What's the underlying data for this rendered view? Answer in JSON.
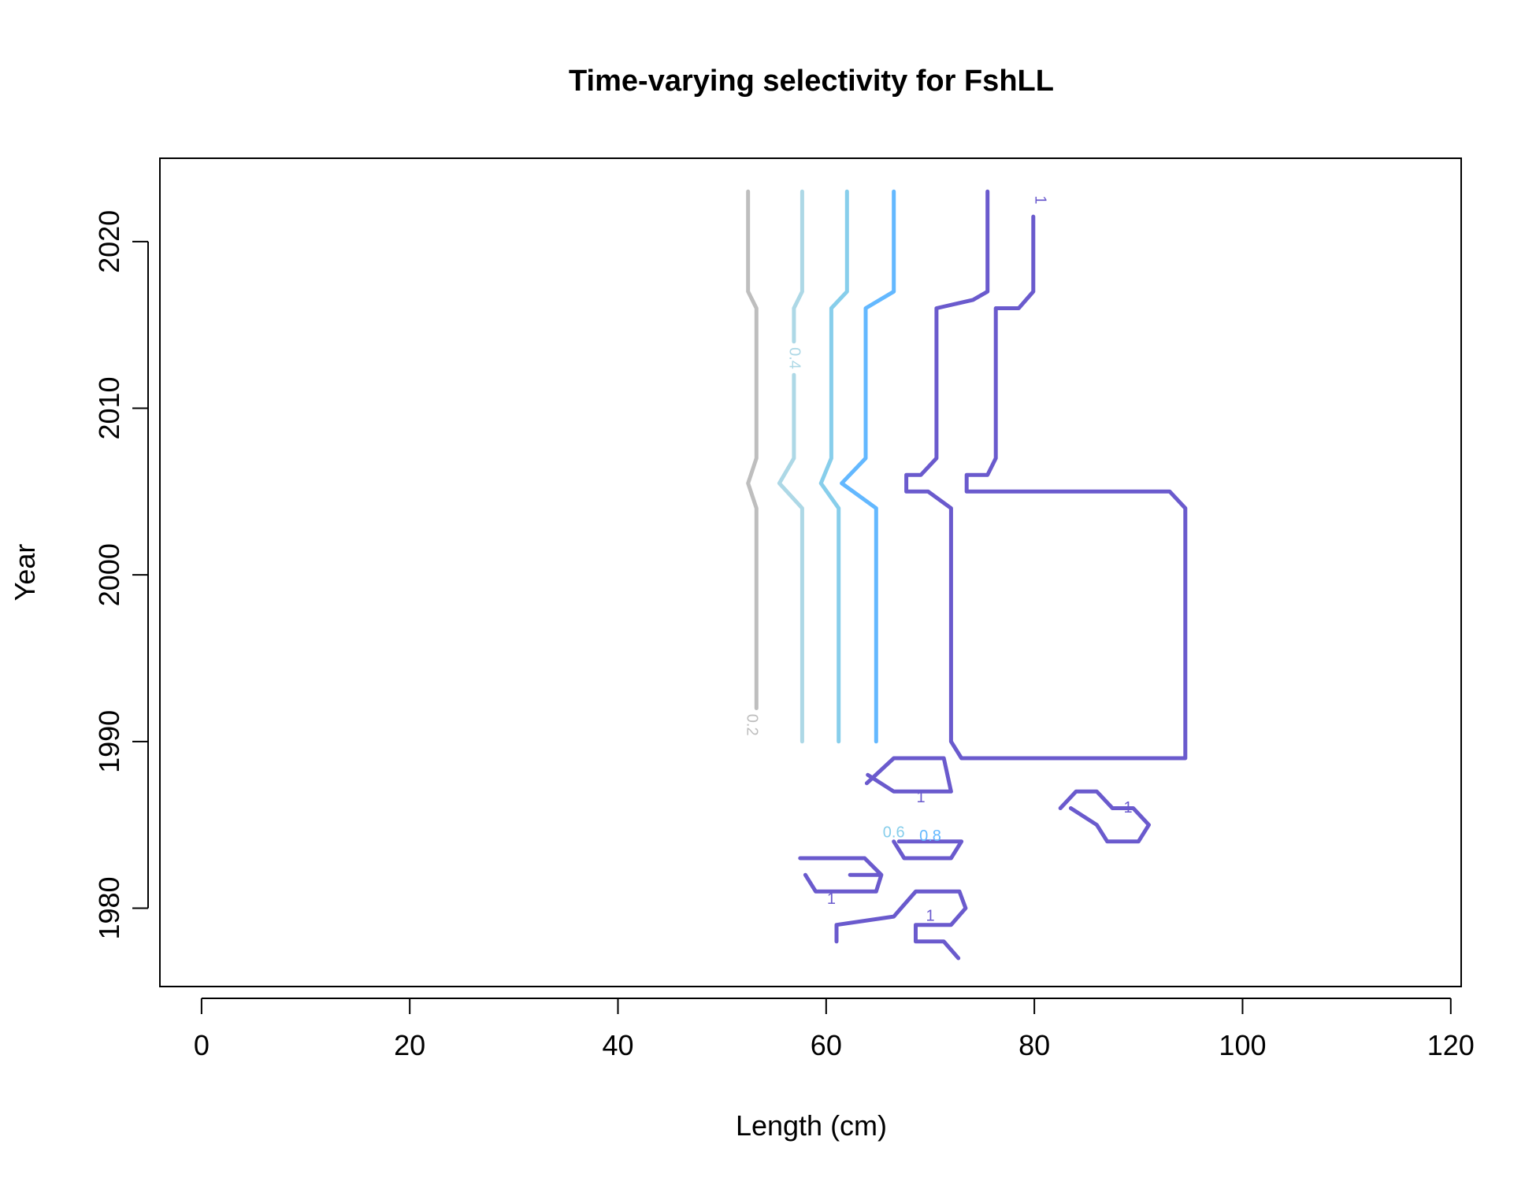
{
  "chart_data": {
    "type": "contour",
    "title": "Time-varying selectivity for FshLL",
    "xlabel": "Length (cm)",
    "ylabel": "Year",
    "xlim": [
      -4,
      121
    ],
    "ylim": [
      1975.3,
      2025
    ],
    "x_ticks": [
      0,
      20,
      40,
      60,
      80,
      100,
      120
    ],
    "y_ticks": [
      1980,
      1990,
      2000,
      2010,
      2020
    ],
    "levels": [
      {
        "level": "0.2",
        "color": "#bebebe",
        "paths": [
          [
            [
              52.5,
              2023
            ],
            [
              52.5,
              2017
            ],
            [
              53.3,
              2016
            ],
            [
              53.3,
              2007
            ],
            [
              52.5,
              2005.5
            ],
            [
              53.3,
              2004
            ],
            [
              53.3,
              1992
            ]
          ]
        ],
        "labels": [
          {
            "text": "0.2",
            "x": 52.8,
            "y": 1991.0
          }
        ]
      },
      {
        "level": "0.4",
        "color": "#add8e6",
        "paths": [
          [
            [
              57.7,
              2023
            ],
            [
              57.7,
              2017
            ],
            [
              56.9,
              2016
            ],
            [
              56.9,
              2014.0
            ]
          ],
          [
            [
              56.9,
              2012.0
            ],
            [
              56.9,
              2007
            ],
            [
              55.5,
              2005.5
            ],
            [
              57.7,
              2004
            ],
            [
              57.7,
              1990
            ]
          ]
        ],
        "labels": [
          {
            "text": "0.4",
            "x": 56.9,
            "y": 2013.0
          }
        ]
      },
      {
        "level": "0.6",
        "color": "#87ceeb",
        "paths": [
          [
            [
              62.0,
              2023
            ],
            [
              62.0,
              2017
            ],
            [
              60.5,
              2016
            ],
            [
              60.5,
              2007
            ],
            [
              59.5,
              2005.5
            ],
            [
              61.2,
              2004
            ],
            [
              61.2,
              1990
            ]
          ]
        ],
        "labels": [
          {
            "text": "0.6",
            "x": 66.5,
            "y": 1984.5
          }
        ]
      },
      {
        "level": "0.8",
        "color": "#63b8ff",
        "paths": [
          [
            [
              66.5,
              2023
            ],
            [
              66.5,
              2017
            ],
            [
              63.8,
              2016
            ],
            [
              63.8,
              2007
            ],
            [
              61.5,
              2005.5
            ],
            [
              64.8,
              2004
            ],
            [
              64.8,
              1990
            ]
          ]
        ],
        "labels": [
          {
            "text": "0.8",
            "x": 70.0,
            "y": 1984.3
          }
        ]
      },
      {
        "level": "1",
        "color": "#6a5acd",
        "paths": [
          [
            [
              75.5,
              2023
            ],
            [
              75.5,
              2017
            ],
            [
              74.1,
              2016.5
            ],
            [
              70.6,
              2016
            ],
            [
              70.6,
              2007
            ],
            [
              69.1,
              2006
            ],
            [
              67.7,
              2006
            ],
            [
              67.7,
              2005
            ],
            [
              69.8,
              2005
            ],
            [
              72.0,
              2004
            ],
            [
              72.0,
              1990
            ],
            [
              73.0,
              1989
            ],
            [
              94.5,
              1989
            ],
            [
              94.5,
              2004
            ],
            [
              93.0,
              2005
            ],
            [
              73.5,
              2005
            ],
            [
              73.5,
              2006
            ],
            [
              75.5,
              2006
            ],
            [
              76.3,
              2007
            ],
            [
              76.3,
              2016
            ],
            [
              78.5,
              2016
            ],
            [
              79.9,
              2017
            ],
            [
              79.9,
              2021.5
            ]
          ],
          [
            [
              63.9,
              1987.5
            ],
            [
              66.5,
              1989
            ],
            [
              71.3,
              1989
            ],
            [
              72.0,
              1987
            ],
            [
              71.3,
              1987
            ],
            [
              69.1,
              1987
            ],
            [
              66.5,
              1987
            ],
            [
              64.0,
              1988
            ]
          ],
          [
            [
              82.5,
              1986
            ],
            [
              84.0,
              1987
            ],
            [
              86.0,
              1987
            ],
            [
              87.5,
              1986
            ],
            [
              89.5,
              1986
            ],
            [
              91.0,
              1985
            ],
            [
              90.0,
              1984
            ],
            [
              87.0,
              1984
            ],
            [
              86.0,
              1985
            ],
            [
              83.5,
              1986
            ]
          ],
          [
            [
              66.5,
              1984
            ],
            [
              67.5,
              1983
            ],
            [
              72.0,
              1983
            ],
            [
              73.0,
              1984
            ],
            [
              67.0,
              1984
            ]
          ],
          [
            [
              57.5,
              1983
            ],
            [
              63.7,
              1983
            ],
            [
              65.3,
              1982
            ],
            [
              62.3,
              1982
            ],
            [
              65.3,
              1982
            ],
            [
              64.8,
              1981
            ],
            [
              59.0,
              1981
            ],
            [
              58.0,
              1982
            ]
          ],
          [
            [
              61.0,
              1978
            ],
            [
              61.0,
              1979
            ],
            [
              66.5,
              1979.5
            ],
            [
              68.6,
              1981
            ],
            [
              72.8,
              1981
            ],
            [
              73.4,
              1980
            ],
            [
              72.0,
              1979
            ],
            [
              68.6,
              1979
            ],
            [
              68.6,
              1978
            ],
            [
              71.3,
              1978
            ],
            [
              72.7,
              1977
            ]
          ]
        ],
        "labels": [
          {
            "text": "1",
            "x": 80.5,
            "y": 2022.5
          },
          {
            "text": "1",
            "x": 69.1,
            "y": 1986.6
          },
          {
            "text": "1",
            "x": 89.0,
            "y": 1986.0
          },
          {
            "text": "1",
            "x": 60.5,
            "y": 1980.5
          },
          {
            "text": "1",
            "x": 70.0,
            "y": 1979.5
          }
        ]
      }
    ]
  }
}
